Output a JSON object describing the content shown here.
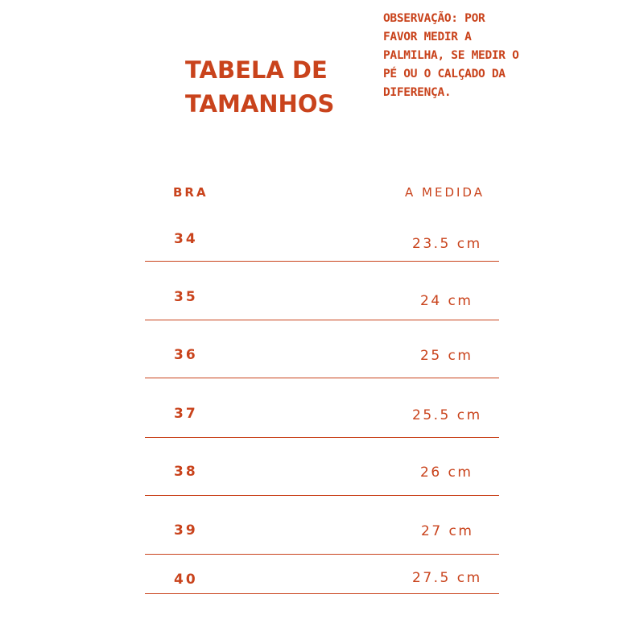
{
  "header": {
    "title_lines": [
      "TABELA DE",
      "TAMANHOS"
    ],
    "note_lines": [
      "OBSERVAÇÃO: POR",
      "FAVOR MEDIR A",
      "PALMILHA, SE MEDIR O",
      "PÉ OU O CALÇADO DA",
      "DIFERENÇA."
    ]
  },
  "table": {
    "columns": [
      "BRA",
      "A MEDIDA"
    ],
    "rows": [
      [
        "34",
        "23.5 cm"
      ],
      [
        "35",
        "24 cm"
      ],
      [
        "36",
        "25 cm"
      ],
      [
        "37",
        "25.5 cm"
      ],
      [
        "38",
        "26 cm"
      ],
      [
        "39",
        "27 cm"
      ],
      [
        "40",
        "27.5 cm"
      ]
    ]
  }
}
